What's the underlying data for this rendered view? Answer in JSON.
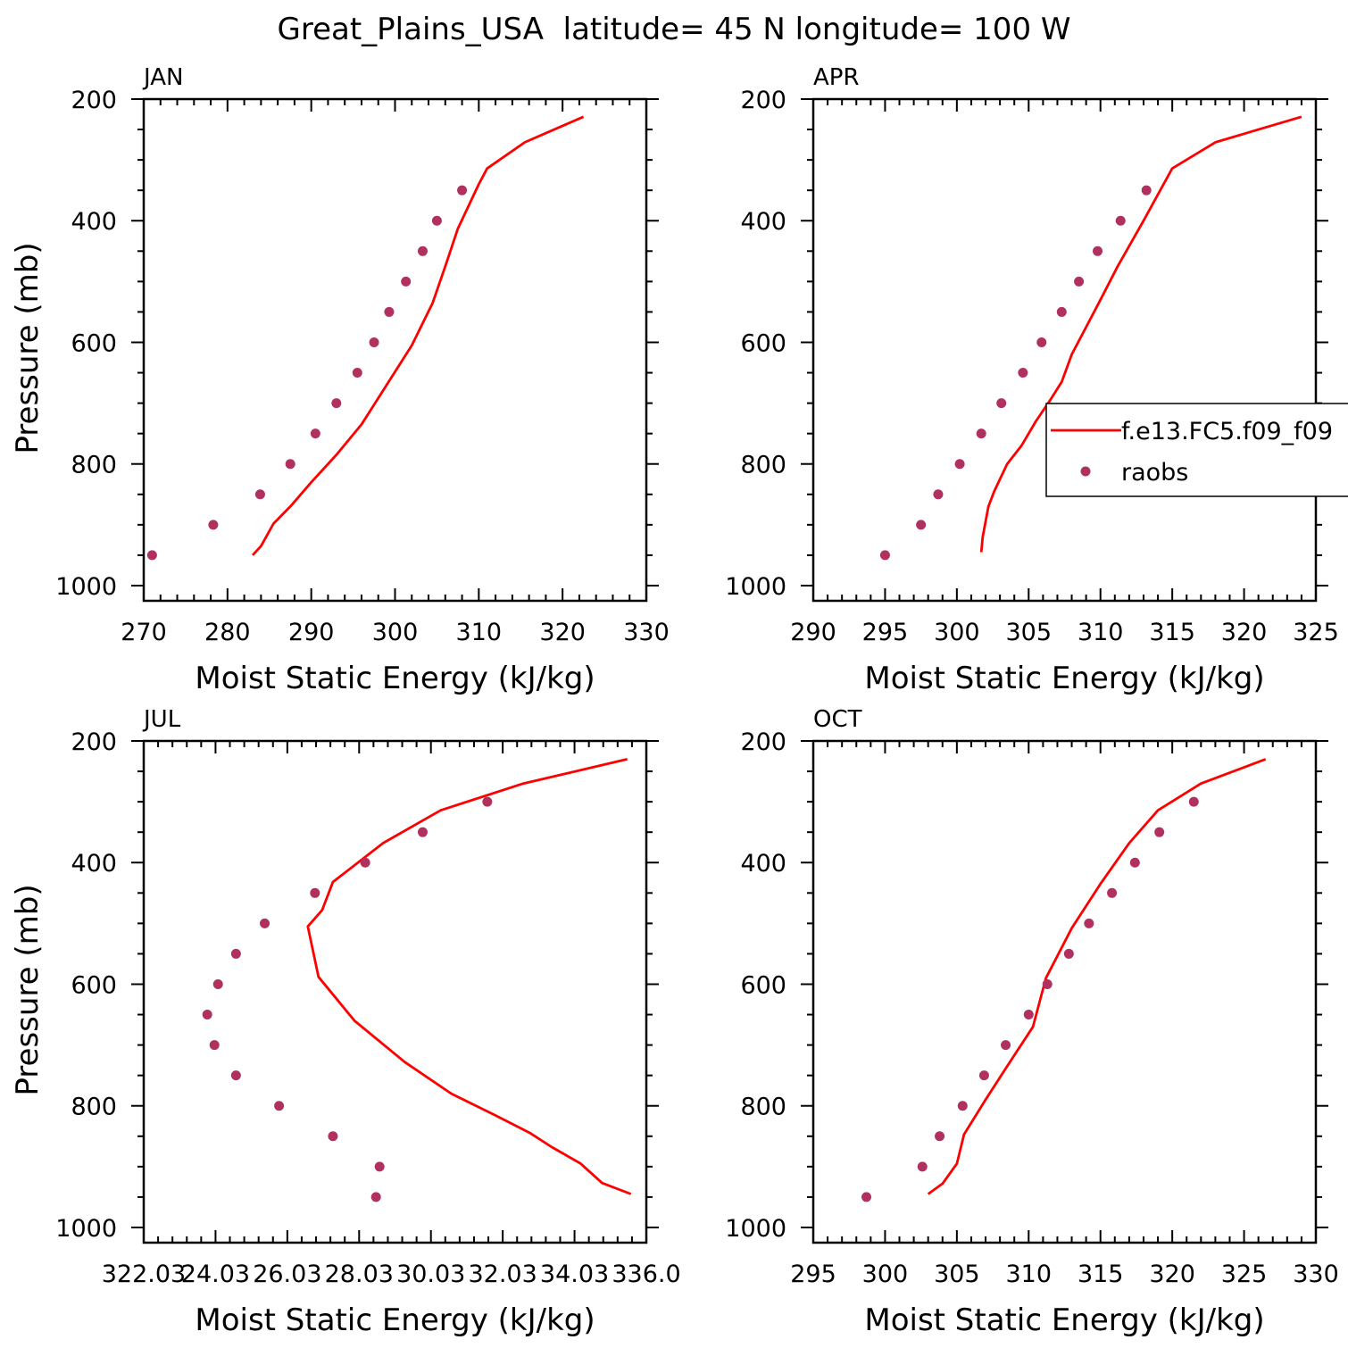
{
  "figure_title": "Great_Plains_USA  latitude= 45 N longitude= 100 W",
  "legend": {
    "model_label": "f.e13.FC5.f09_f09",
    "obs_label": "raobs"
  },
  "colors": {
    "model": "#ff0000",
    "obs": "#b03060",
    "axis": "#000000"
  },
  "chart_data": [
    {
      "type": "line",
      "panel": "JAN",
      "xlabel": "Moist Static Energy (kJ/kg)",
      "ylabel": "Pressure (mb)",
      "xlim": [
        270,
        330
      ],
      "xticks": [
        270,
        280,
        290,
        300,
        310,
        320,
        330
      ],
      "xtick_labels": [
        "270",
        "280",
        "290",
        "300",
        "310",
        "320",
        "330"
      ],
      "ylim": [
        200,
        1025
      ],
      "yticks": [
        200,
        400,
        600,
        800,
        1000
      ],
      "yaxis_inverted": true,
      "series": [
        {
          "name": "f.e13.FC5.f09_f09",
          "kind": "line",
          "points": [
            [
              283,
              950
            ],
            [
              284,
              935
            ],
            [
              285.5,
              898
            ],
            [
              287.5,
              870
            ],
            [
              290,
              830
            ],
            [
              293,
              785
            ],
            [
              296,
              735
            ],
            [
              299,
              670
            ],
            [
              302,
              605
            ],
            [
              304.5,
              535
            ],
            [
              306,
              475
            ],
            [
              307.5,
              413
            ],
            [
              310,
              340
            ],
            [
              311,
              314
            ],
            [
              315.5,
              271
            ],
            [
              322.5,
              229
            ]
          ]
        },
        {
          "name": "raobs",
          "kind": "scatter",
          "points": [
            [
              271,
              950
            ],
            [
              278.3,
              900
            ],
            [
              283.9,
              850
            ],
            [
              287.5,
              800
            ],
            [
              290.5,
              750
            ],
            [
              293,
              700
            ],
            [
              295.5,
              650
            ],
            [
              297.5,
              600
            ],
            [
              299.3,
              550
            ],
            [
              301.3,
              500
            ],
            [
              303.3,
              450
            ],
            [
              305,
              400
            ],
            [
              308,
              350
            ]
          ]
        }
      ]
    },
    {
      "type": "line",
      "panel": "APR",
      "xlabel": "Moist Static Energy (kJ/kg)",
      "ylabel": "",
      "xlim": [
        290,
        325
      ],
      "xticks": [
        290,
        295,
        300,
        305,
        310,
        315,
        320,
        325
      ],
      "xtick_labels": [
        "290",
        "295",
        "300",
        "305",
        "310",
        "315",
        "320",
        "325"
      ],
      "ylim": [
        200,
        1025
      ],
      "yticks": [
        200,
        400,
        600,
        800,
        1000
      ],
      "yaxis_inverted": true,
      "series": [
        {
          "name": "f.e13.FC5.f09_f09",
          "kind": "line",
          "points": [
            [
              301.7,
              945
            ],
            [
              301.8,
              920
            ],
            [
              302.0,
              895
            ],
            [
              302.2,
              870
            ],
            [
              302.6,
              845
            ],
            [
              303.5,
              800
            ],
            [
              304.5,
              770
            ],
            [
              305.5,
              730
            ],
            [
              306.5,
              695
            ],
            [
              307.3,
              665
            ],
            [
              308,
              620
            ],
            [
              309,
              575
            ],
            [
              310,
              530
            ],
            [
              311.2,
              475
            ],
            [
              313,
              400
            ],
            [
              315,
              314
            ],
            [
              318,
              271
            ],
            [
              324,
              229
            ]
          ]
        },
        {
          "name": "raobs",
          "kind": "scatter",
          "points": [
            [
              295,
              950
            ],
            [
              297.5,
              900
            ],
            [
              298.7,
              850
            ],
            [
              300.2,
              800
            ],
            [
              301.7,
              750
            ],
            [
              303.1,
              700
            ],
            [
              304.6,
              650
            ],
            [
              305.9,
              600
            ],
            [
              307.3,
              550
            ],
            [
              308.5,
              500
            ],
            [
              309.8,
              450
            ],
            [
              311.4,
              400
            ],
            [
              313.2,
              350
            ]
          ]
        }
      ]
    },
    {
      "type": "line",
      "panel": "JUL",
      "xlabel": "Moist Static Energy (kJ/kg)",
      "ylabel": "Pressure (mb)",
      "xlim": [
        322.03,
        336.03
      ],
      "xticks": [
        322.03,
        324.03,
        326.03,
        328.03,
        330.03,
        332.03,
        334.03,
        336.03
      ],
      "xtick_labels": [
        "322.03",
        "24.03",
        "26.03",
        "28.03",
        "30.03",
        "32.03",
        "34.03",
        "336.0"
      ],
      "ylim": [
        200,
        1025
      ],
      "yticks": [
        200,
        400,
        600,
        800,
        1000
      ],
      "yaxis_inverted": true,
      "series": [
        {
          "name": "f.e13.FC5.f09_f09",
          "kind": "line",
          "points": [
            [
              335.6,
              945
            ],
            [
              334.8,
              927
            ],
            [
              334.2,
              895
            ],
            [
              333.4,
              868
            ],
            [
              332.8,
              845
            ],
            [
              331.8,
              815
            ],
            [
              330.6,
              780
            ],
            [
              329.3,
              728
            ],
            [
              327.9,
              660
            ],
            [
              326.9,
              588
            ],
            [
              326.6,
              505
            ],
            [
              327.0,
              478
            ],
            [
              327.3,
              432
            ],
            [
              328.7,
              368
            ],
            [
              330.3,
              314
            ],
            [
              332.6,
              270
            ],
            [
              335.5,
              230
            ]
          ]
        },
        {
          "name": "raobs",
          "kind": "scatter",
          "points": [
            [
              328.5,
              950
            ],
            [
              328.6,
              900
            ],
            [
              327.3,
              850
            ],
            [
              325.8,
              800
            ],
            [
              324.6,
              750
            ],
            [
              324.0,
              700
            ],
            [
              323.8,
              650
            ],
            [
              324.1,
              600
            ],
            [
              324.6,
              550
            ],
            [
              325.4,
              500
            ],
            [
              326.8,
              450
            ],
            [
              328.2,
              400
            ],
            [
              329.8,
              350
            ],
            [
              331.6,
              300
            ]
          ]
        }
      ]
    },
    {
      "type": "line",
      "panel": "OCT",
      "xlabel": "Moist Static Energy (kJ/kg)",
      "ylabel": "",
      "xlim": [
        295,
        330
      ],
      "xticks": [
        295,
        300,
        305,
        310,
        315,
        320,
        325,
        330
      ],
      "xtick_labels": [
        "295",
        "300",
        "305",
        "310",
        "315",
        "320",
        "325",
        "330"
      ],
      "ylim": [
        200,
        1025
      ],
      "yticks": [
        200,
        400,
        600,
        800,
        1000
      ],
      "yaxis_inverted": true,
      "series": [
        {
          "name": "f.e13.FC5.f09_f09",
          "kind": "line",
          "points": [
            [
              303,
              945
            ],
            [
              304,
              928
            ],
            [
              305,
              895
            ],
            [
              305.5,
              847
            ],
            [
              307,
              790
            ],
            [
              308.5,
              735
            ],
            [
              310.3,
              670
            ],
            [
              311.2,
              590
            ],
            [
              313,
              508
            ],
            [
              315,
              435
            ],
            [
              317,
              368
            ],
            [
              319,
              314
            ],
            [
              322,
              270
            ],
            [
              326.5,
              230
            ]
          ]
        },
        {
          "name": "raobs",
          "kind": "scatter",
          "points": [
            [
              298.7,
              950
            ],
            [
              302.6,
              900
            ],
            [
              303.8,
              850
            ],
            [
              305.4,
              800
            ],
            [
              306.9,
              750
            ],
            [
              308.4,
              700
            ],
            [
              310,
              650
            ],
            [
              311.3,
              600
            ],
            [
              312.8,
              550
            ],
            [
              314.2,
              500
            ],
            [
              315.8,
              450
            ],
            [
              317.4,
              400
            ],
            [
              319.1,
              350
            ],
            [
              321.5,
              300
            ]
          ]
        }
      ]
    }
  ]
}
